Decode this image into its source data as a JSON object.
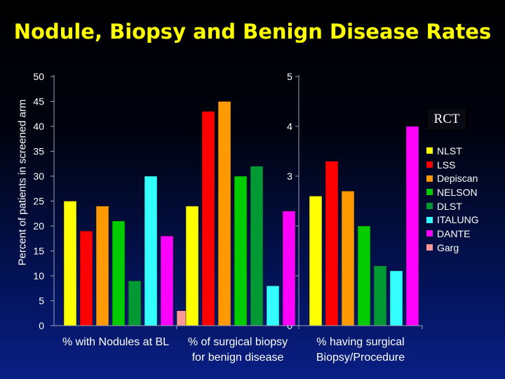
{
  "chart_data": {
    "type": "bar",
    "title": "Nodule, Biopsy and Benign Disease Rates",
    "ylabel": "Percent of patients in screened arm",
    "left_axis": {
      "ylim": [
        0,
        50
      ],
      "ticks": [
        "0",
        "5",
        "10",
        "15",
        "20",
        "25",
        "30",
        "35",
        "40",
        "45",
        "50"
      ]
    },
    "right_axis": {
      "ylim": [
        0,
        5
      ],
      "ticks": [
        "0",
        "1",
        "2",
        "3",
        "4",
        "5"
      ]
    },
    "series": [
      {
        "name": "NLST",
        "color": "#FFFF00"
      },
      {
        "name": "LSS",
        "color": "#FF0000"
      },
      {
        "name": "Depiscan",
        "color": "#FF9900"
      },
      {
        "name": "NELSON",
        "color": "#00CC00"
      },
      {
        "name": "DLST",
        "color": "#009933"
      },
      {
        "name": "ITALUNG",
        "color": "#33FFFF"
      },
      {
        "name": "DANTE",
        "color": "#FF00FF"
      },
      {
        "name": "Garg",
        "color": "#FF9999"
      }
    ],
    "groups": [
      {
        "label": "% with Nodules at BL",
        "axis": "left",
        "bars": [
          {
            "series": "NLST",
            "value": 25
          },
          {
            "series": "LSS",
            "value": 19
          },
          {
            "series": "Depiscan",
            "value": 24
          },
          {
            "series": "NELSON",
            "value": 21
          },
          {
            "series": "DLST",
            "value": 9
          },
          {
            "series": "ITALUNG",
            "value": 30
          },
          {
            "series": "DANTE",
            "value": 18
          },
          {
            "series": "Garg",
            "value": 3
          }
        ]
      },
      {
        "label": "% of surgical biopsy\nfor benign disease",
        "axis": "left",
        "bars": [
          {
            "series": "NLST",
            "value": 24
          },
          {
            "series": "LSS",
            "value": 43
          },
          {
            "series": "Depiscan",
            "value": 45
          },
          {
            "series": "NELSON",
            "value": 30
          },
          {
            "series": "DLST",
            "value": 32
          },
          {
            "series": "ITALUNG",
            "value": 8
          },
          {
            "series": "DANTE",
            "value": 23
          }
        ]
      },
      {
        "label": "% having surgical\nBiopsy/Procedure",
        "axis": "right",
        "bars": [
          {
            "series": "NLST",
            "value": 2.6
          },
          {
            "series": "LSS",
            "value": 3.3
          },
          {
            "series": "Depiscan",
            "value": 2.7
          },
          {
            "series": "NELSON",
            "value": 2.0
          },
          {
            "series": "DLST",
            "value": 1.2
          },
          {
            "series": "ITALUNG",
            "value": 1.1
          },
          {
            "series": "DANTE",
            "value": 4.0
          }
        ]
      }
    ],
    "annotation": "RCT",
    "legend_position": "right"
  }
}
